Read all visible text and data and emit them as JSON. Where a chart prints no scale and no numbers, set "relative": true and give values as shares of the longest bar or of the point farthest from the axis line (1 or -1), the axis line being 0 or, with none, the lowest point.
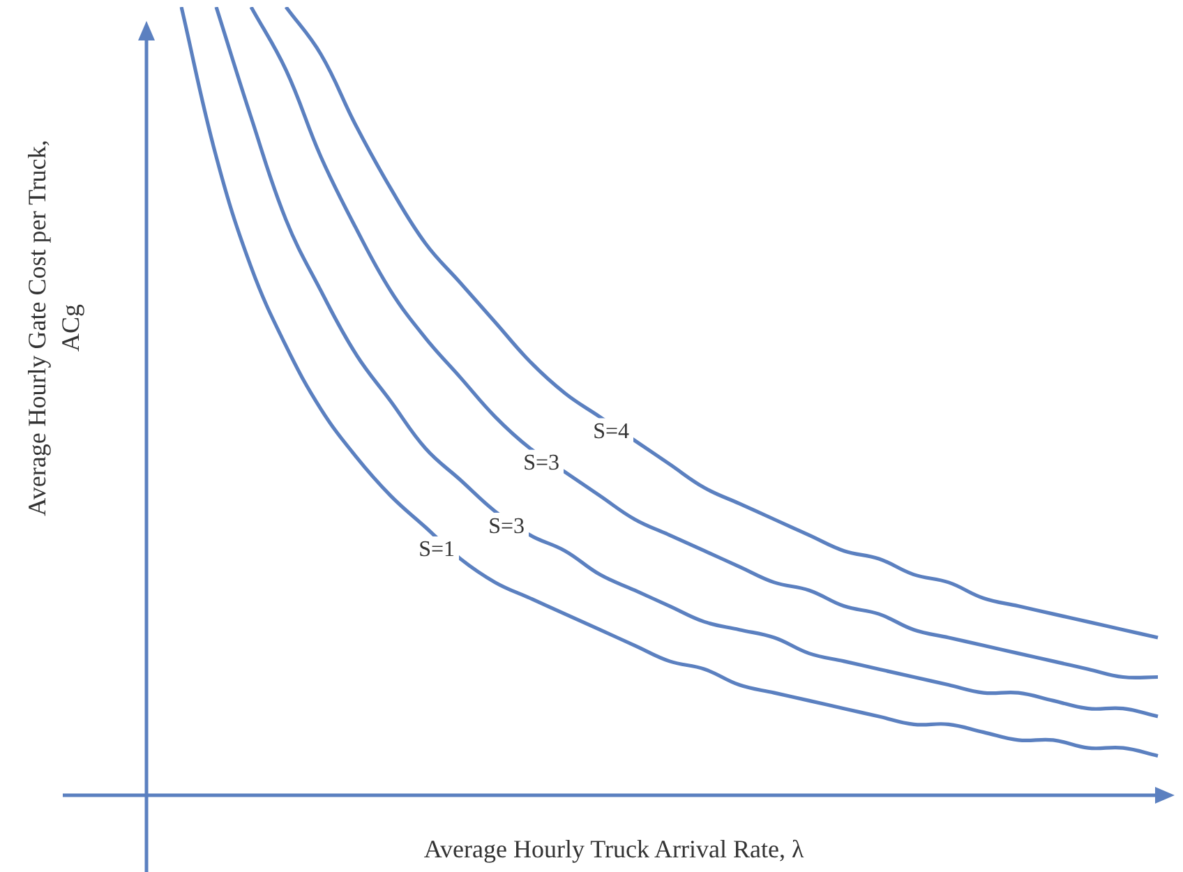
{
  "chart_data": {
    "type": "line",
    "relative": true,
    "xlabel": "Average Hourly Truck Arrival Rate, λ",
    "ylabel": "Average Hourly Gate Cost per Truck, ACg",
    "tick_labels": false,
    "categories": [
      null,
      null,
      null,
      null,
      null,
      null,
      null,
      null,
      null,
      null,
      null,
      null,
      null,
      null,
      null,
      null,
      null,
      null,
      null,
      null,
      null,
      null,
      null,
      null,
      null,
      null,
      null,
      null,
      null
    ],
    "series": [
      {
        "name": "S=1",
        "color": "#5b80c0",
        "values": [
          1,
          0.81,
          0.67,
          0.57,
          0.49,
          0.43,
          0.38,
          0.34,
          0.3,
          0.27,
          0.25,
          0.23,
          0.21,
          0.19,
          0.17,
          0.16,
          0.14,
          0.13,
          0.12,
          0.11,
          0.1,
          0.09,
          0.09,
          0.08,
          0.07,
          0.07,
          0.06,
          0.06,
          0.05
        ]
      },
      {
        "name": "S=3",
        "color": "#5b80c0",
        "values": [
          null,
          1,
          0.86,
          0.73,
          0.64,
          0.56,
          0.5,
          0.44,
          0.4,
          0.36,
          0.33,
          0.31,
          0.28,
          0.26,
          0.24,
          0.22,
          0.21,
          0.2,
          0.18,
          0.17,
          0.16,
          0.15,
          0.14,
          0.13,
          0.13,
          0.12,
          0.11,
          0.11,
          0.1
        ]
      },
      {
        "name": "S=3",
        "color": "#5b80c0",
        "values": [
          null,
          null,
          1,
          0.92,
          0.81,
          0.72,
          0.64,
          0.58,
          0.53,
          0.48,
          0.44,
          0.41,
          0.38,
          0.35,
          0.33,
          0.31,
          0.29,
          0.27,
          0.26,
          0.24,
          0.23,
          0.21,
          0.2,
          0.19,
          0.18,
          0.17,
          0.16,
          0.15,
          0.15
        ]
      },
      {
        "name": "S=4",
        "color": "#5b80c0",
        "values": [
          null,
          null,
          null,
          1,
          0.94,
          0.85,
          0.77,
          0.7,
          0.65,
          0.6,
          0.55,
          0.51,
          0.48,
          0.45,
          0.42,
          0.39,
          0.37,
          0.35,
          0.33,
          0.31,
          0.3,
          0.28,
          0.27,
          0.25,
          0.24,
          0.23,
          0.22,
          0.21,
          0.2
        ]
      }
    ]
  }
}
